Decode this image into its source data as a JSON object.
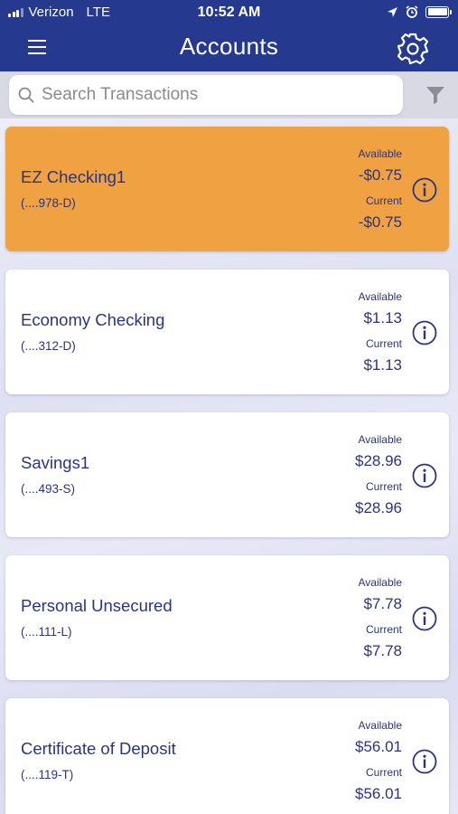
{
  "status_bar": {
    "carrier": "Verizon",
    "network": "LTE",
    "time": "10:52 AM"
  },
  "header": {
    "title": "Accounts",
    "menu_icon": "hamburger-menu-icon",
    "settings_icon": "gear-icon"
  },
  "search": {
    "placeholder": "Search Transactions",
    "value": ""
  },
  "accounts": [
    {
      "name": "EZ Checking1",
      "number": "(....978-D)",
      "available_label": "Available",
      "available": "-$0.75",
      "current_label": "Current",
      "current": "-$0.75",
      "selected": true
    },
    {
      "name": "Economy Checking",
      "number": "(....312-D)",
      "available_label": "Available",
      "available": "$1.13",
      "current_label": "Current",
      "current": "$1.13",
      "selected": false
    },
    {
      "name": "Savings1",
      "number": "(....493-S)",
      "available_label": "Available",
      "available": "$28.96",
      "current_label": "Current",
      "current": "$28.96",
      "selected": false
    },
    {
      "name": "Personal Unsecured",
      "number": "(....111-L)",
      "available_label": "Available",
      "available": "$7.78",
      "current_label": "Current",
      "current": "$7.78",
      "selected": false
    },
    {
      "name": "Certificate of Deposit",
      "number": "(....119-T)",
      "available_label": "Available",
      "available": "$56.01",
      "current_label": "Current",
      "current": "$56.01",
      "selected": false
    }
  ],
  "colors": {
    "header_bg": "#253a8e",
    "selected_card": "#f0a142",
    "text_primary": "#2a3480"
  }
}
